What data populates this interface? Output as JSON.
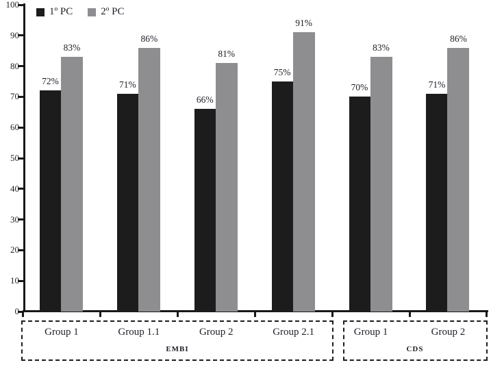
{
  "chart_data": {
    "type": "bar",
    "title": "",
    "xlabel": "",
    "ylabel": "",
    "categories": [
      "Group 1",
      "Group 1.1",
      "Group 2",
      "Group 2.1",
      "Group 1",
      "Group 2"
    ],
    "series": [
      {
        "name": "1º PC",
        "color": "#1c1c1c",
        "values": [
          72,
          71,
          66,
          75,
          70,
          71
        ]
      },
      {
        "name": "2º PC",
        "color": "#8e8e91",
        "values": [
          83,
          86,
          81,
          91,
          83,
          86
        ]
      }
    ],
    "value_label_suffix": "%",
    "value_labels": {
      "series_1": [
        "72%",
        "71%",
        "66%",
        "75%",
        "70%",
        "71%"
      ],
      "series_2": [
        "83%",
        "86%",
        "81%",
        "91%",
        "83%",
        "86%"
      ]
    },
    "ylim": [
      0,
      100
    ],
    "yticks": [
      0,
      10,
      20,
      30,
      40,
      50,
      60,
      70,
      80,
      90,
      100
    ],
    "grid": false,
    "legend_position": "top-left",
    "sections": [
      {
        "label": "EMBI",
        "categories": [
          "Group 1",
          "Group 1.1",
          "Group 2",
          "Group 2.1"
        ],
        "span": [
          0,
          3
        ]
      },
      {
        "label": "CDS",
        "categories": [
          "Group 1",
          "Group 2"
        ],
        "span": [
          4,
          5
        ]
      }
    ]
  },
  "colors": {
    "bar_primary": "#1c1c1c",
    "bar_secondary": "#8e8e91",
    "axis": "#181818",
    "text": "#1d1d26",
    "background": "#ffffff"
  }
}
